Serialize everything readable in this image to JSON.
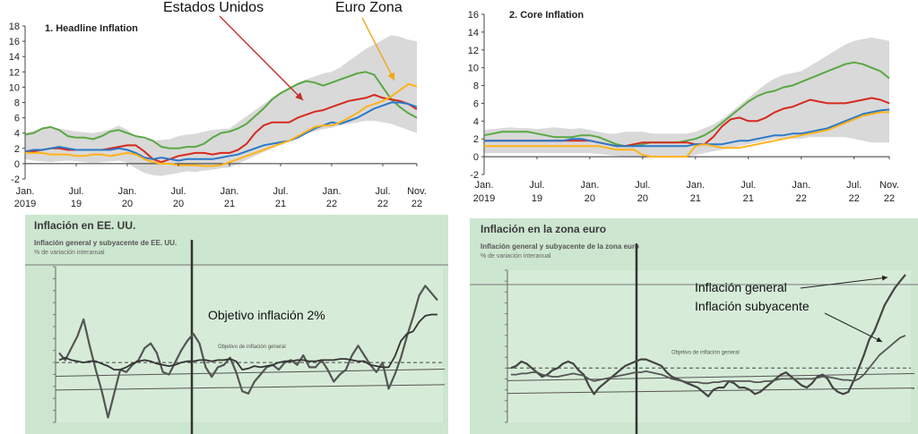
{
  "annotations": {
    "estados_unidos": "Estados Unidos",
    "euro_zona": "Euro Zona",
    "objetivo": "Objetivo inflación 2%",
    "inflacion_general": "Inflación general",
    "inflacion_subyacente": "Inflación subyacente"
  },
  "photos": {
    "us_title": "Inflación en EE. UU.",
    "us_subtitle": "Inflación general y subyacente de EE. UU.",
    "us_unit": "% de variación interanual",
    "ez_title": "Inflación en la zona euro",
    "ez_subtitle": "Inflación general y subyacente de la zona euro",
    "ez_unit": "% de variación interanual",
    "obj_label": "Objetivo de inflación general"
  },
  "colors": {
    "green": "#5aa843",
    "red": "#d62a1f",
    "blue": "#2a78c8",
    "orange": "#ffb319",
    "band": "#d9d9d9",
    "arrow_red": "#c0302a",
    "arrow_orange": "#f0a818"
  },
  "chart_data": [
    {
      "type": "line",
      "title": "1. Headline Inflation",
      "ylim": [
        -2,
        18
      ],
      "yticks": [
        -2,
        0,
        2,
        4,
        6,
        8,
        10,
        12,
        14,
        16,
        18
      ],
      "xticks": [
        {
          "x": 0,
          "l1": "Jan.",
          "l2": "2019"
        },
        {
          "x": 6,
          "l1": "Jul.",
          "l2": "19"
        },
        {
          "x": 12,
          "l1": "Jan.",
          "l2": "20"
        },
        {
          "x": 18,
          "l1": "Jul.",
          "l2": "20"
        },
        {
          "x": 24,
          "l1": "Jan.",
          "l2": "21"
        },
        {
          "x": 30,
          "l1": "Jul.",
          "l2": "21"
        },
        {
          "x": 36,
          "l1": "Jan.",
          "l2": "22"
        },
        {
          "x": 42,
          "l1": "Jul.",
          "l2": "22"
        },
        {
          "x": 46,
          "l1": "Nov.",
          "l2": "22"
        }
      ],
      "band_upper": [
        4,
        4.3,
        4.6,
        4.8,
        4.6,
        4.4,
        4.2,
        4.1,
        4,
        4.2,
        4.5,
        5,
        4.4,
        3.6,
        3.2,
        3.0,
        3.1,
        3.2,
        3.6,
        3.8,
        3.9,
        4.2,
        4.4,
        4.5,
        4.6,
        5.4,
        6.2,
        7,
        7.8,
        8.6,
        9.4,
        10,
        10.6,
        11,
        11.4,
        11.8,
        12,
        12.6,
        13.4,
        14.2,
        15,
        15.6,
        16.2,
        16.8,
        16.6,
        16.2,
        16
      ],
      "band_lower": [
        0.6,
        0.4,
        0.3,
        0.2,
        0.3,
        0.4,
        0.3,
        0.2,
        0.1,
        0.2,
        0.3,
        0.4,
        0.1,
        -0.6,
        -1.2,
        -1.5,
        -1.6,
        -1.4,
        -1.2,
        -1.0,
        -1.1,
        -0.9,
        -0.8,
        -0.6,
        -0.5,
        0,
        0.5,
        1,
        1.5,
        2,
        2.5,
        3,
        3.5,
        4,
        4.2,
        4.5,
        4.7,
        5,
        5.2,
        5.4,
        5.6,
        5.6,
        5.4,
        5.2,
        4.8,
        4.4,
        4
      ],
      "series": [
        {
          "color": "green",
          "values": [
            3.8,
            4,
            4.6,
            4.8,
            4.4,
            3.6,
            3.4,
            3.4,
            3.2,
            3.6,
            4.2,
            4.4,
            4,
            3.6,
            3.4,
            3,
            2.2,
            2,
            2,
            2.2,
            2.2,
            2.6,
            3.4,
            4,
            4.2,
            4.6,
            5.2,
            6.2,
            7.2,
            8.4,
            9.2,
            9.8,
            10.4,
            10.8,
            10.6,
            10.2,
            10.6,
            11,
            11.4,
            11.8,
            12,
            11.6,
            10,
            8.4,
            7.4,
            6.6,
            6
          ]
        },
        {
          "color": "red",
          "values": [
            1.6,
            1.6,
            1.8,
            2,
            2,
            1.8,
            1.8,
            1.8,
            1.8,
            1.8,
            2,
            2.2,
            2.4,
            2.4,
            1.6,
            0.6,
            0.2,
            0.6,
            1,
            1.2,
            1.4,
            1.4,
            1.2,
            1.4,
            1.4,
            1.8,
            2.6,
            4,
            5,
            5.4,
            5.4,
            5.4,
            6,
            6.4,
            6.8,
            7,
            7.4,
            7.8,
            8.2,
            8.4,
            8.6,
            9,
            8.6,
            8.4,
            8.2,
            7.8,
            7.1
          ]
        },
        {
          "color": "blue",
          "values": [
            1.6,
            1.8,
            1.8,
            2,
            2.2,
            2,
            1.8,
            1.8,
            1.8,
            1.8,
            1.8,
            2,
            1.8,
            1.4,
            0.8,
            0.6,
            0.8,
            0.6,
            0.4,
            0.6,
            0.6,
            0.6,
            0.6,
            0.8,
            1,
            1.2,
            1.6,
            2,
            2.4,
            2.6,
            2.8,
            3,
            3.4,
            4,
            4.6,
            5,
            5.4,
            5.2,
            5.6,
            6,
            6.6,
            7.2,
            7.6,
            8,
            8,
            7.8,
            7.4
          ]
        },
        {
          "color": "orange",
          "values": [
            1.4,
            1.4,
            1.4,
            1.2,
            1.2,
            1.2,
            1,
            1,
            1.2,
            1.2,
            1,
            1.2,
            1.4,
            1.2,
            0.6,
            0.2,
            0,
            0,
            -0.2,
            -0.2,
            -0.2,
            -0.3,
            -0.3,
            -0.2,
            0.2,
            0.6,
            1,
            1.4,
            1.8,
            2.2,
            2.6,
            3,
            3.6,
            4.2,
            4.8,
            5,
            5,
            5.4,
            6,
            6.6,
            7.4,
            7.8,
            8.2,
            8.8,
            9.6,
            10.4,
            10.1
          ]
        }
      ]
    },
    {
      "type": "line",
      "title": "2. Core Inflation",
      "ylim": [
        -2,
        16
      ],
      "yticks": [
        -2,
        0,
        2,
        4,
        6,
        8,
        10,
        12,
        14,
        16
      ],
      "xticks": [
        {
          "x": 0,
          "l1": "Jan.",
          "l2": "2019"
        },
        {
          "x": 6,
          "l1": "Jul.",
          "l2": "19"
        },
        {
          "x": 12,
          "l1": "Jan.",
          "l2": "20"
        },
        {
          "x": 18,
          "l1": "Jul.",
          "l2": "20"
        },
        {
          "x": 24,
          "l1": "Jan.",
          "l2": "21"
        },
        {
          "x": 30,
          "l1": "Jul.",
          "l2": "21"
        },
        {
          "x": 36,
          "l1": "Jan.",
          "l2": "22"
        },
        {
          "x": 42,
          "l1": "Jul.",
          "l2": "22"
        },
        {
          "x": 46,
          "l1": "Nov.",
          "l2": "22"
        }
      ],
      "band_upper": [
        3,
        3.1,
        3.2,
        3.3,
        3.2,
        3.2,
        3.1,
        3.2,
        3.3,
        3.2,
        3.1,
        3.2,
        3,
        2.8,
        2.6,
        2.6,
        2.8,
        2.8,
        2.8,
        2.6,
        2.6,
        2.6,
        2.6,
        2.6,
        2.8,
        3.2,
        3.6,
        4.2,
        5,
        5.8,
        6.6,
        7.4,
        8.2,
        8.8,
        9.2,
        9.4,
        9.6,
        10.2,
        10.8,
        11.4,
        12,
        12.6,
        13,
        13.2,
        13.4,
        13.2,
        13
      ],
      "band_lower": [
        0.4,
        0.4,
        0.4,
        0.4,
        0.4,
        0.4,
        0.4,
        0.4,
        0.4,
        0.4,
        0.4,
        0.4,
        0.4,
        0.3,
        0.2,
        0.1,
        0,
        0,
        -0.1,
        -0.1,
        -0.1,
        -0.1,
        -0.1,
        0,
        0.2,
        0.4,
        0.6,
        0.8,
        1,
        1.2,
        1.4,
        1.6,
        1.8,
        2,
        2,
        2,
        2,
        2.2,
        2.2,
        2.2,
        2.2,
        2.2,
        2,
        1.8,
        1.6,
        1.6,
        1.6
      ],
      "series": [
        {
          "color": "green",
          "values": [
            2.4,
            2.6,
            2.8,
            2.8,
            2.8,
            2.8,
            2.6,
            2.4,
            2.2,
            2.2,
            2.2,
            2.4,
            2.4,
            2.2,
            1.8,
            1.4,
            1.2,
            1.2,
            1.4,
            1.6,
            1.6,
            1.6,
            1.6,
            1.8,
            2,
            2.4,
            3,
            3.8,
            4.6,
            5.4,
            6.2,
            6.8,
            7.2,
            7.4,
            7.8,
            8,
            8.4,
            8.8,
            9.2,
            9.6,
            10,
            10.4,
            10.6,
            10.4,
            10,
            9.6,
            8.8
          ]
        },
        {
          "color": "red",
          "values": [
            1.8,
            1.8,
            1.8,
            1.8,
            1.8,
            1.8,
            1.8,
            1.8,
            1.8,
            1.8,
            1.8,
            1.8,
            1.8,
            1.6,
            1.4,
            1.2,
            1.2,
            1.4,
            1.6,
            1.6,
            1.6,
            1.6,
            1.6,
            1.6,
            1.4,
            1.4,
            2.2,
            3.4,
            4.2,
            4.4,
            4,
            4,
            4.4,
            5,
            5.4,
            5.6,
            6,
            6.4,
            6.2,
            6,
            6,
            6,
            6.2,
            6.4,
            6.6,
            6.4,
            6
          ]
        },
        {
          "color": "blue",
          "values": [
            1.8,
            1.8,
            1.8,
            1.8,
            1.8,
            1.8,
            1.8,
            1.8,
            1.8,
            1.8,
            2,
            2,
            1.8,
            1.6,
            1.4,
            1.2,
            1.2,
            1.2,
            1.2,
            1.2,
            1.2,
            1.2,
            1.2,
            1.2,
            1.4,
            1.4,
            1.4,
            1.4,
            1.6,
            1.8,
            1.8,
            2,
            2.2,
            2.4,
            2.4,
            2.6,
            2.6,
            2.8,
            3,
            3.2,
            3.6,
            4,
            4.4,
            4.8,
            5,
            5.2,
            5.3
          ]
        },
        {
          "color": "orange",
          "values": [
            1.2,
            1.2,
            1.2,
            1.2,
            1.2,
            1.2,
            1.2,
            1.2,
            1.2,
            1.2,
            1.2,
            1.2,
            1.2,
            1.2,
            1,
            0.8,
            0.8,
            0.8,
            0.2,
            0,
            0,
            0,
            0,
            0,
            1.2,
            1.4,
            1.2,
            1,
            1,
            1,
            1.2,
            1.4,
            1.6,
            1.8,
            2,
            2.2,
            2.4,
            2.6,
            2.8,
            3,
            3.4,
            3.8,
            4.2,
            4.6,
            4.8,
            5,
            5
          ]
        }
      ]
    },
    {
      "type": "line",
      "title": "Inflación en EE. UU.",
      "ylim": [
        -3,
        10
      ],
      "target": 2,
      "series": [
        {
          "color": "#555555",
          "values": [
            2.8,
            2.2,
            3.2,
            4.2,
            5.6,
            3.4,
            1.4,
            -0.4,
            -2.6,
            -0.6,
            1.4,
            1.2,
            1.8,
            2.2,
            3.2,
            3.6,
            2.8,
            1.2,
            1,
            2,
            3,
            3.8,
            4.4,
            3.6,
            1.6,
            0.8,
            1.6,
            1.8,
            2.4,
            1.2,
            -0.4,
            -0.6,
            0.4,
            1,
            1.6,
            1.8,
            1.4,
            2,
            2.2,
            1.8,
            2.6,
            1.6,
            1.6,
            2.2,
            1.4,
            0.4,
            1,
            1.4,
            2.6,
            3.4,
            2.6,
            1.8,
            1.2,
            2,
            -0.2,
            1,
            2.4,
            4.2,
            5.8,
            7.6,
            8.4,
            7.8,
            7.2
          ]
        },
        {
          "color": "#333333",
          "values": [
            2.2,
            2.4,
            2.2,
            2.1,
            2.0,
            2.1,
            2.1,
            1.9,
            1.7,
            1.4,
            1.4,
            1.6,
            1.9,
            2.1,
            2.2,
            2.1,
            1.9,
            1.8,
            1.7,
            1.8,
            2.0,
            2.1,
            2.1,
            2.2,
            2.2,
            2.1,
            2.2,
            2.2,
            2.3,
            2.1,
            1.4,
            1.5,
            1.7,
            1.6,
            1.7,
            1.8,
            2.0,
            2.1,
            2.1,
            2.2,
            2.2,
            2.1,
            2.1,
            2.2,
            2.2,
            2.2,
            2.3,
            2.3,
            2.2,
            2.1,
            2.1,
            1.8,
            1.7,
            1.6,
            1.6,
            2.5,
            3.8,
            4.4,
            4.6,
            5.4,
            5.9,
            6.0,
            6.0
          ]
        }
      ]
    },
    {
      "type": "line",
      "title": "Inflación en la zona euro",
      "ylim": [
        -3,
        11
      ],
      "target": 2,
      "series": [
        {
          "color": "#444444",
          "values": [
            2.0,
            2.2,
            2.6,
            2.4,
            2.0,
            1.6,
            1.2,
            1.4,
            1.8,
            2.0,
            2.4,
            2.6,
            2.4,
            1.8,
            1.4,
            0.4,
            -0.4,
            0.2,
            0.6,
            1.0,
            1.4,
            1.8,
            2.2,
            2.4,
            2.6,
            2.8,
            2.8,
            2.6,
            2.4,
            2.2,
            1.6,
            1.2,
            1.0,
            0.8,
            0.6,
            0.4,
            0.2,
            -0.2,
            -0.6,
            0,
            0.2,
            0.2,
            0.8,
            0.6,
            0.2,
            0.2,
            0,
            -0.4,
            -0.2,
            0.2,
            0.6,
            1.0,
            1.4,
            1.6,
            1.2,
            0.8,
            0.4,
            0.2,
            0.6,
            1.2,
            1.4,
            1.0,
            0.2,
            -0.2,
            -0.4,
            -0.2,
            0.8,
            2.0,
            3.2,
            4.6,
            5.4,
            6.6,
            7.8,
            8.6,
            9.4,
            10.0,
            10.6
          ]
        },
        {
          "color": "#555555",
          "values": [
            1.4,
            1.4,
            1.5,
            1.5,
            1.6,
            1.6,
            1.4,
            1.3,
            1.2,
            1.2,
            1.3,
            1.4,
            1.5,
            1.4,
            1.3,
            1.0,
            0.8,
            0.9,
            1.0,
            1.1,
            1.2,
            1.3,
            1.4,
            1.5,
            1.6,
            1.6,
            1.7,
            1.6,
            1.5,
            1.4,
            1.2,
            1.0,
            0.9,
            0.8,
            0.7,
            0.7,
            0.7,
            0.6,
            0.6,
            0.7,
            0.7,
            0.8,
            0.8,
            0.8,
            0.8,
            0.8,
            0.8,
            0.7,
            0.7,
            0.8,
            0.8,
            0.9,
            1.0,
            1.0,
            1.0,
            1.0,
            1.0,
            1.0,
            1.0,
            1.1,
            1.2,
            1.2,
            1.1,
            1.0,
            0.9,
            0.9,
            0.8,
            1.0,
            1.4,
            2.0,
            2.6,
            3.2,
            3.6,
            4.0,
            4.4,
            4.8,
            5.0
          ]
        }
      ]
    }
  ]
}
